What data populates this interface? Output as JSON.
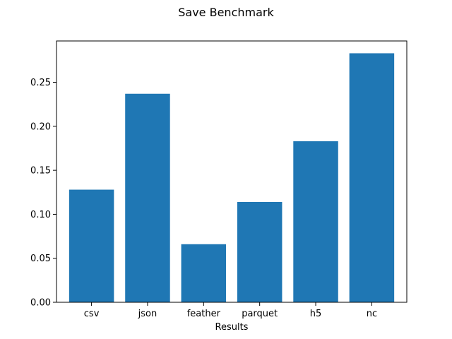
{
  "chart_data": {
    "type": "bar",
    "title": "Save Benchmark",
    "xlabel": "Results",
    "ylabel": "",
    "categories": [
      "csv",
      "json",
      "feather",
      "parquet",
      "h5",
      "nc"
    ],
    "values": [
      0.128,
      0.237,
      0.066,
      0.114,
      0.183,
      0.283
    ],
    "ylim": [
      0,
      0.297
    ],
    "yticks": [
      0.0,
      0.05,
      0.1,
      0.15,
      0.2,
      0.25
    ],
    "ytick_labels": [
      "0.00",
      "0.05",
      "0.10",
      "0.15",
      "0.20",
      "0.25"
    ],
    "bar_color": "#1f77b4",
    "grid": false,
    "legend": "none"
  }
}
